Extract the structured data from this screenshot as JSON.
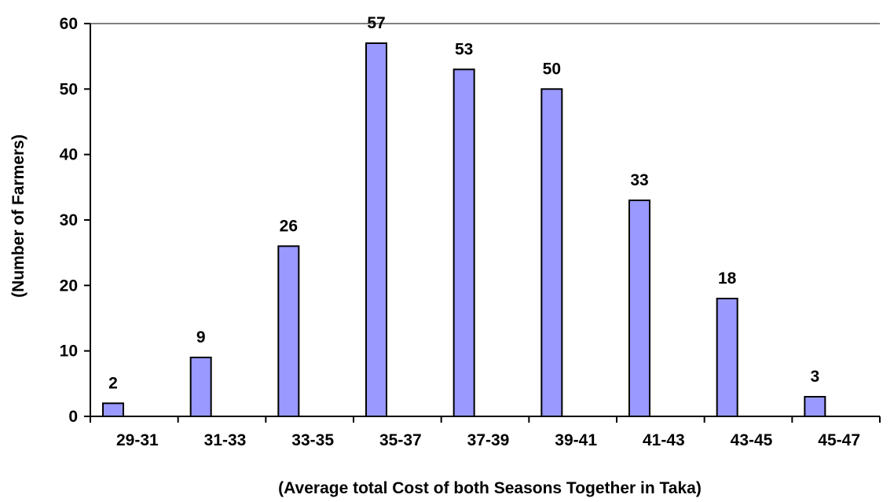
{
  "chart_data": {
    "type": "bar",
    "title": "",
    "xlabel": "(Average total Cost of both Seasons Together in Taka)",
    "ylabel": "(Number of Farmers)",
    "categories": [
      "29-31",
      "31-33",
      "33-35",
      "35-37",
      "37-39",
      "39-41",
      "41-43",
      "43-45",
      "45-47"
    ],
    "values": [
      2,
      9,
      26,
      57,
      53,
      50,
      33,
      18,
      3
    ],
    "ylim": [
      0,
      60
    ],
    "yticks": [
      0,
      10,
      20,
      30,
      40,
      50,
      60
    ],
    "grid": false,
    "legend": "none",
    "colors": {
      "bar_fill": "#9999ff",
      "bar_stroke": "#000000",
      "axis": "#000000",
      "top_border": "#808080"
    }
  }
}
